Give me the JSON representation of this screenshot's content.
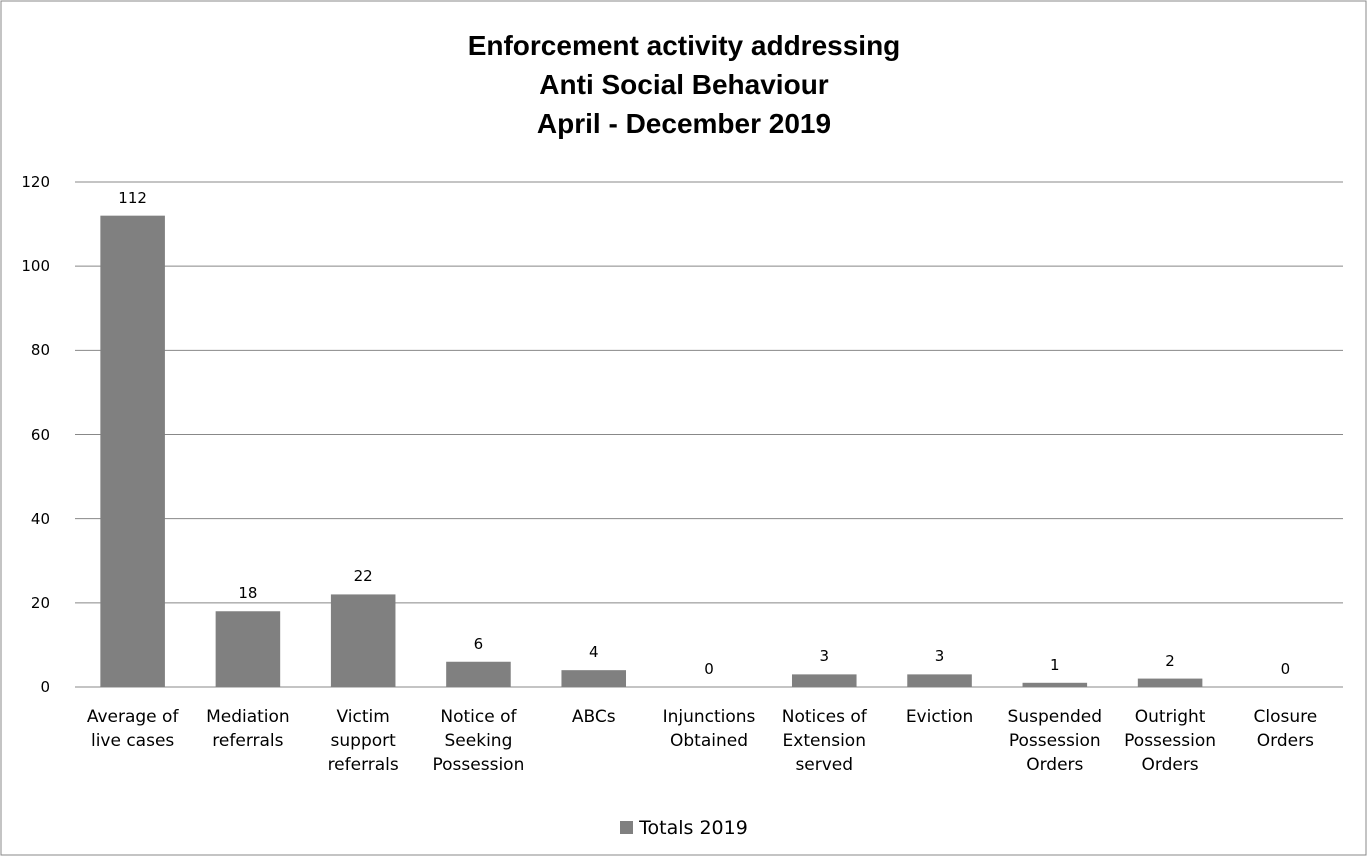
{
  "chart_data": {
    "type": "bar",
    "title": [
      "Enforcement activity addressing",
      "Anti Social Behaviour",
      "April - December 2019"
    ],
    "categories": [
      "Average of live cases",
      "Mediation referrals",
      "Victim support referrals",
      "Notice of Seeking Possession",
      "ABCs",
      "Injunctions Obtained",
      "Notices of Extension served",
      "Eviction",
      "Suspended Possession Orders",
      "Outright Possession Orders",
      "Closure Orders"
    ],
    "series": [
      {
        "name": "Totals 2019",
        "color": "#808080",
        "values": [
          112,
          18,
          22,
          6,
          4,
          0,
          3,
          3,
          1,
          2,
          0
        ]
      }
    ],
    "ylim": [
      0,
      120
    ],
    "yticks": [
      0,
      20,
      40,
      60,
      80,
      100,
      120
    ],
    "grid": true,
    "legend": "bottom"
  }
}
